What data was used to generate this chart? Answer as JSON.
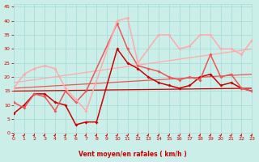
{
  "background_color": "#cceee8",
  "grid_color": "#aaddda",
  "xlabel": "Vent moyen/en rafales ( km/h )",
  "tick_color": "#cc0000",
  "xlim": [
    0,
    23
  ],
  "ylim": [
    0,
    46
  ],
  "yticks": [
    0,
    5,
    10,
    15,
    20,
    25,
    30,
    35,
    40,
    45
  ],
  "xticks": [
    0,
    1,
    2,
    3,
    4,
    5,
    6,
    7,
    8,
    9,
    10,
    11,
    12,
    13,
    14,
    15,
    16,
    17,
    18,
    19,
    20,
    21,
    22,
    23
  ],
  "lines": [
    {
      "x": [
        0,
        1,
        2,
        3,
        4,
        5,
        6,
        7,
        8,
        10,
        11,
        12,
        13,
        14,
        15,
        16,
        17,
        18,
        19,
        20,
        21,
        22,
        23
      ],
      "y": [
        7,
        10,
        14,
        14,
        11,
        10,
        3,
        4,
        4,
        30,
        25,
        23,
        20,
        18,
        17,
        16,
        17,
        20,
        21,
        17,
        18,
        16,
        15
      ],
      "color": "#cc0000",
      "lw": 1.1,
      "marker": "D",
      "ms": 2.0
    },
    {
      "x": [
        0,
        1,
        2,
        3,
        4,
        5,
        6,
        7,
        10,
        11,
        12,
        13,
        14,
        15,
        16,
        17,
        18,
        19,
        20,
        21,
        22,
        23
      ],
      "y": [
        11,
        9,
        14,
        13,
        8,
        15,
        11,
        15,
        39,
        30,
        24,
        23,
        22,
        20,
        19,
        20,
        19,
        28,
        20,
        21,
        16,
        15
      ],
      "color": "#ee5555",
      "lw": 1.1,
      "marker": "D",
      "ms": 2.0
    },
    {
      "x": [
        0,
        1,
        2,
        3,
        4,
        5,
        6,
        7,
        10,
        11,
        12,
        14,
        15,
        16,
        17,
        18,
        19,
        20,
        21,
        22,
        23
      ],
      "y": [
        16,
        21,
        23,
        24,
        23,
        16,
        12,
        8,
        40,
        41,
        25,
        35,
        35,
        30,
        31,
        35,
        35,
        30,
        30,
        28,
        33
      ],
      "color": "#ffaaaa",
      "lw": 1.1,
      "marker": "D",
      "ms": 2.0
    },
    {
      "x": [
        0,
        23
      ],
      "y": [
        15,
        16
      ],
      "color": "#cc0000",
      "lw": 0.9,
      "marker": null,
      "ms": 0
    },
    {
      "x": [
        0,
        23
      ],
      "y": [
        16,
        21
      ],
      "color": "#ee5555",
      "lw": 0.9,
      "marker": null,
      "ms": 0
    },
    {
      "x": [
        0,
        23
      ],
      "y": [
        18,
        30
      ],
      "color": "#ffaaaa",
      "lw": 0.9,
      "marker": null,
      "ms": 0
    }
  ]
}
